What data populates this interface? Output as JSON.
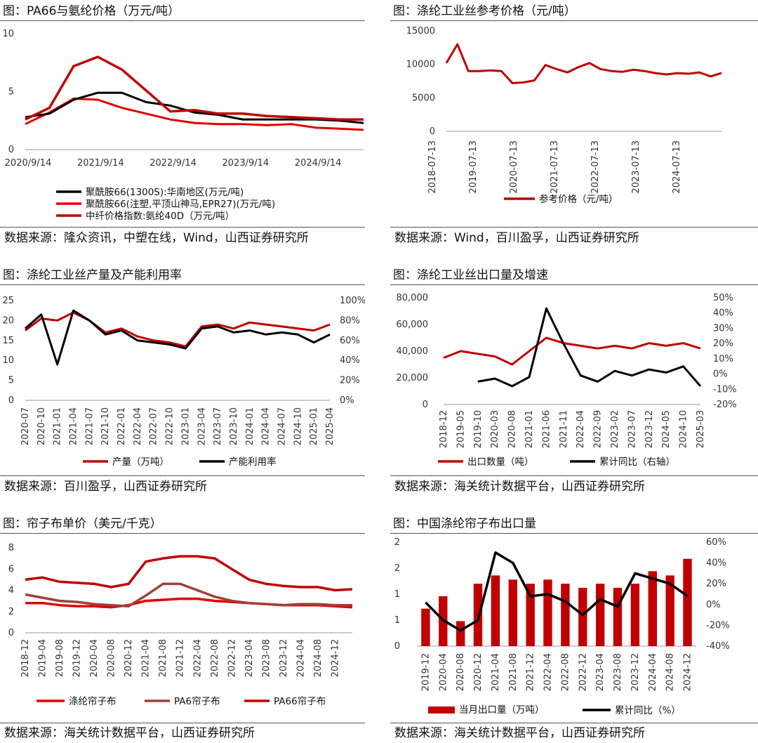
{
  "colors": {
    "red": "#c00000",
    "dark_red": "#8b0000",
    "brown": "#a0403a",
    "black": "#000000"
  },
  "panels": [
    {
      "title": "图：PA66与氨纶价格（万元/吨）",
      "source": "数据来源：隆众资讯，中塑在线，Wind，山西证券研究所",
      "chart_data": {
        "type": "line",
        "x": [
          "2020/9/14",
          "2021/1/14",
          "2021/5/14",
          "2021/9/14",
          "2022/1/14",
          "2022/5/14",
          "2022/9/14",
          "2023/1/14",
          "2023/5/14",
          "2023/9/14",
          "2024/1/14",
          "2024/5/14",
          "2024/9/14",
          "2025/1/14",
          "2025/4/14"
        ],
        "xticks": [
          "2020/9/14",
          "2021/9/14",
          "2022/9/14",
          "2023/9/14",
          "2024/9/14"
        ],
        "yticks": [
          "0",
          "5",
          "10"
        ],
        "ylim": [
          0,
          10
        ],
        "series": [
          {
            "name": "聚酰胺66(1300S):华南地区(万元/吨)",
            "color": "#000000",
            "values": [
              2.8,
              3.1,
              4.3,
              4.9,
              4.9,
              4.1,
              3.8,
              3.2,
              3.0,
              2.6,
              2.6,
              2.6,
              2.6,
              2.5,
              2.3
            ]
          },
          {
            "name": "聚酰胺66(注塑,平顶山神马,EPR27)(万元/吨)",
            "color": "#e00000",
            "values": [
              2.2,
              3.2,
              4.4,
              4.3,
              3.6,
              3.1,
              2.6,
              2.3,
              2.2,
              2.2,
              2.1,
              2.2,
              1.9,
              1.8,
              1.7
            ]
          },
          {
            "name": "中纤价格指数:氨纶40D（万元/吨）",
            "color": "#c00000",
            "values": [
              2.6,
              3.6,
              7.2,
              8.0,
              6.9,
              5.1,
              3.3,
              3.4,
              3.1,
              3.1,
              2.9,
              2.8,
              2.7,
              2.6,
              2.6
            ]
          }
        ]
      }
    },
    {
      "title": "图：涤纶工业丝参考价格（元/吨）",
      "source": "数据来源：Wind，百川盈孚，山西证券研究所",
      "chart_data": {
        "type": "line",
        "x": [
          "2019-01",
          "2019-04",
          "2019-07",
          "2019-10",
          "2020-01",
          "2020-04",
          "2020-07",
          "2020-10",
          "2021-01",
          "2021-04",
          "2021-07",
          "2021-10",
          "2022-01",
          "2022-04",
          "2022-07",
          "2022-10",
          "2023-01",
          "2023-04",
          "2023-07",
          "2023-10",
          "2024-01",
          "2024-04",
          "2024-07",
          "2024-10",
          "2025-01",
          "2025-04"
        ],
        "xticks": [
          "2018-07-13",
          "2019-07-13",
          "2020-07-13",
          "2021-07-13",
          "2022-07-13",
          "2023-07-13",
          "2024-07-13"
        ],
        "yticks": [
          "0",
          "5000",
          "10000",
          "15000"
        ],
        "ylim": [
          0,
          15000
        ],
        "series": [
          {
            "name": "参考价格（元/吨）",
            "color": "#c00000",
            "values": [
              10200,
              13000,
              9000,
              9000,
              9100,
              9000,
              7200,
              7300,
              7600,
              9900,
              9300,
              8800,
              9600,
              10200,
              9300,
              9000,
              8900,
              9200,
              9000,
              8700,
              8500,
              8700,
              8600,
              8800,
              8200,
              8700
            ]
          }
        ]
      }
    },
    {
      "title": "图：涤纶工业丝产量及产能利用率",
      "source": "数据来源：百川盈孚，山西证券研究所",
      "chart_data": {
        "type": "line",
        "x": [
          "2020-07",
          "2020-10",
          "2021-01",
          "2021-04",
          "2021-07",
          "2021-10",
          "2022-01",
          "2022-04",
          "2022-07",
          "2022-10",
          "2023-01",
          "2023-04",
          "2023-07",
          "2023-10",
          "2024-01",
          "2024-04",
          "2024-07",
          "2024-10",
          "2025-01",
          "2025-04"
        ],
        "y_left_ticks": [
          "0",
          "5",
          "10",
          "15",
          "20",
          "25"
        ],
        "y_right_ticks": [
          "0%",
          "20%",
          "40%",
          "60%",
          "80%",
          "100%"
        ],
        "ylim_left": [
          0,
          25
        ],
        "ylim_right": [
          0,
          100
        ],
        "series": [
          {
            "name": "产量（万吨）",
            "axis": "left",
            "color": "#c00000",
            "values": [
              17.5,
              20.5,
              20.0,
              22.0,
              20.0,
              17.0,
              18.0,
              16.0,
              15.0,
              14.5,
              13.5,
              18.5,
              19.0,
              18.0,
              19.5,
              19.0,
              18.5,
              18.0,
              17.5,
              19.0
            ]
          },
          {
            "name": "产能利用率",
            "axis": "right",
            "color": "#000000",
            "values": [
              72,
              86,
              36,
              90,
              80,
              66,
              70,
              60,
              58,
              56,
              52,
              72,
              74,
              68,
              70,
              66,
              68,
              66,
              58,
              66
            ]
          }
        ]
      }
    },
    {
      "title": "图：涤纶工业丝出口量及增速",
      "source": "数据来源：海关统计数据平台，山西证券研究所",
      "chart_data": {
        "type": "line",
        "x": [
          "2018-12",
          "2019-05",
          "2019-10",
          "2020-03",
          "2020-08",
          "2021-01",
          "2021-06",
          "2021-11",
          "2022-04",
          "2022-09",
          "2023-02",
          "2023-07",
          "2023-12",
          "2024-05",
          "2024-10",
          "2025-03"
        ],
        "y_left_ticks": [
          "0",
          "20,000",
          "40,000",
          "60,000",
          "80,000"
        ],
        "y_right_ticks": [
          "-20%",
          "-10%",
          "0%",
          "10%",
          "20%",
          "30%",
          "40%",
          "50%"
        ],
        "ylim_left": [
          0,
          80000
        ],
        "ylim_right": [
          -20,
          50
        ],
        "series": [
          {
            "name": "出口数量（吨）",
            "axis": "left",
            "color": "#c00000",
            "values": [
              35000,
              40000,
              38000,
              36000,
              30000,
              40000,
              50000,
              46000,
              44000,
              42000,
              44000,
              42000,
              46000,
              44000,
              46000,
              42000
            ]
          },
          {
            "name": "累计同比（右轴）",
            "axis": "right",
            "color": "#000000",
            "values": [
              null,
              null,
              -5,
              -3,
              -8,
              -2,
              43,
              20,
              -1,
              -5,
              2,
              -1,
              3,
              1,
              5,
              -8
            ]
          }
        ]
      }
    },
    {
      "title": "图：帘子布单价（美元/千克）",
      "source": "数据来源：海关统计数据平台，山西证券研究所",
      "chart_data": {
        "type": "line",
        "x": [
          "2018-12",
          "2019-04",
          "2019-08",
          "2019-12",
          "2020-04",
          "2020-08",
          "2020-12",
          "2021-04",
          "2021-08",
          "2021-12",
          "2022-04",
          "2022-08",
          "2022-12",
          "2023-04",
          "2023-08",
          "2023-12",
          "2024-04",
          "2024-08",
          "2024-12",
          "2025-03"
        ],
        "yticks": [
          "0",
          "2",
          "4",
          "6",
          "8"
        ],
        "ylim": [
          0,
          8
        ],
        "series": [
          {
            "name": "涤纶帘子布",
            "color": "#e00000",
            "values": [
              2.8,
              2.8,
              2.6,
              2.5,
              2.5,
              2.4,
              2.6,
              3.0,
              3.1,
              3.2,
              3.2,
              3.0,
              2.9,
              2.8,
              2.7,
              2.6,
              2.6,
              2.6,
              2.5,
              2.4
            ]
          },
          {
            "name": "PA6帘子布",
            "color": "#a0403a",
            "values": [
              3.6,
              3.3,
              3.0,
              2.9,
              2.7,
              2.6,
              2.5,
              3.5,
              4.6,
              4.6,
              4.0,
              3.4,
              3.0,
              2.8,
              2.7,
              2.6,
              2.7,
              2.7,
              2.6,
              2.6
            ]
          },
          {
            "name": "PA66帘子布",
            "color": "#c00000",
            "values": [
              5.0,
              5.2,
              4.8,
              4.7,
              4.6,
              4.3,
              4.6,
              6.7,
              7.0,
              7.2,
              7.2,
              7.0,
              6.0,
              5.0,
              4.6,
              4.4,
              4.3,
              4.3,
              4.0,
              4.1
            ]
          }
        ]
      }
    },
    {
      "title": "图：中国涤纶帘子布出口量",
      "source": "数据来源：海关统计数据平台，山西证券研究所",
      "chart_data": {
        "type": "bar",
        "x": [
          "2019-12",
          "2020-04",
          "2020-08",
          "2020-12",
          "2021-04",
          "2021-08",
          "2021-12",
          "2022-04",
          "2022-08",
          "2022-12",
          "2023-04",
          "2023-08",
          "2023-12",
          "2024-04",
          "2024-08",
          "2024-12"
        ],
        "y_left_ticks": [
          "0",
          "1",
          "1",
          "2",
          "2"
        ],
        "y_right_ticks": [
          "-40%",
          "-20%",
          "0%",
          "20%",
          "40%",
          "60%"
        ],
        "ylim_left": [
          0,
          2.5
        ],
        "ylim_right": [
          -40,
          60
        ],
        "series": [
          {
            "name": "当月出口量（万吨）",
            "axis": "left",
            "color": "#c00000",
            "values": [
              0.9,
              1.2,
              0.6,
              1.5,
              1.7,
              1.6,
              1.5,
              1.6,
              1.5,
              1.4,
              1.5,
              1.4,
              1.5,
              1.8,
              1.7,
              2.1
            ]
          },
          {
            "name": "累计同比（%）",
            "axis": "right",
            "color": "#000000",
            "values": [
              2,
              -15,
              -25,
              -15,
              50,
              40,
              8,
              10,
              3,
              -10,
              5,
              -2,
              30,
              25,
              20,
              8
            ]
          }
        ]
      }
    }
  ]
}
